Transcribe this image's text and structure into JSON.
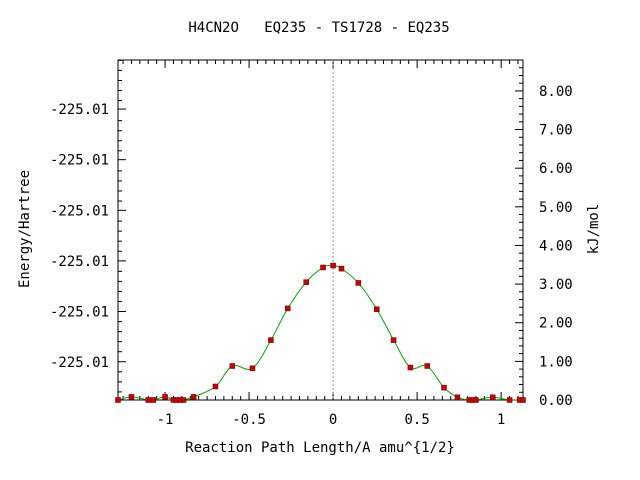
{
  "chart_data": {
    "type": "line",
    "title": "H4CN2O   EQ235 - TS1728 - EQ235",
    "xlabel": "Reaction Path Length/A amu^{1/2}",
    "ylabel": "Energy/Hartree",
    "y2label": "kJ/mol",
    "xlim": [
      -1.28,
      1.13
    ],
    "y2lim": [
      0,
      8.8
    ],
    "x_ticks": [
      -1,
      -0.5,
      0,
      0.5,
      1
    ],
    "x_tick_labels": [
      "-1",
      "-0.5",
      "0",
      "0.5",
      "1"
    ],
    "y2_ticks": [
      0,
      1,
      2,
      3,
      4,
      5,
      6,
      7,
      8
    ],
    "y2_tick_labels": [
      "0.00",
      "1.00",
      "2.00",
      "3.00",
      "4.00",
      "5.00",
      "6.00",
      "7.00",
      "8.00"
    ],
    "y1_tick_positions_kjmol": [
      0.99,
      2.29,
      3.6,
      4.91,
      6.22,
      7.53
    ],
    "y1_tick_labels": [
      "-225.01",
      "-225.01",
      "-225.01",
      "-225.01",
      "-225.01",
      "-225.01"
    ],
    "reference_line_x": 0,
    "series": [
      {
        "x": [
          -1.28,
          -1.2,
          -1.1,
          -1.07,
          -1.0,
          -0.95,
          -0.93,
          -0.91,
          -0.89,
          -0.83,
          -0.7,
          -0.6,
          -0.48,
          -0.37,
          -0.27,
          -0.16,
          -0.06,
          0.0,
          0.05,
          0.15,
          0.26,
          0.36,
          0.46,
          0.56,
          0.66,
          0.74,
          0.81,
          0.83,
          0.85,
          0.95,
          1.05,
          1.11,
          1.13
        ],
        "y": [
          0.0,
          0.08,
          0.0,
          0.0,
          0.08,
          0.0,
          0.0,
          0.0,
          0.0,
          0.08,
          0.35,
          0.88,
          0.82,
          1.55,
          2.37,
          3.05,
          3.43,
          3.48,
          3.4,
          3.03,
          2.35,
          1.55,
          0.84,
          0.88,
          0.32,
          0.07,
          0.0,
          0.0,
          0.0,
          0.07,
          0.0,
          0.0,
          0.0
        ]
      }
    ],
    "line_color": "#00aa00",
    "marker_color": "#cc0000",
    "grid": false
  }
}
